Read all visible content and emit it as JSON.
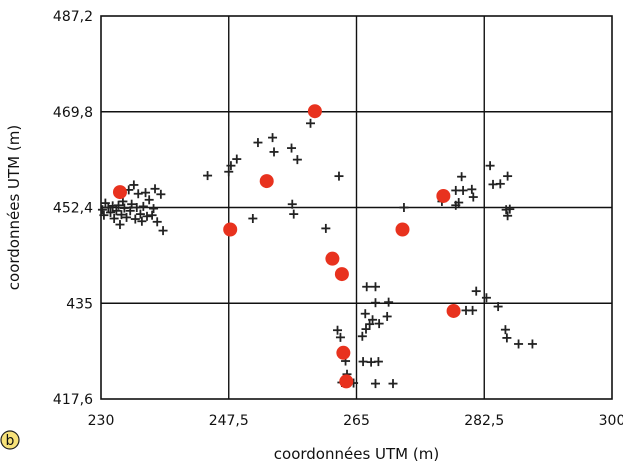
{
  "panel_label": "b",
  "chart_data": {
    "type": "scatter",
    "xlabel": "coordonnées UTM (m)",
    "ylabel": "coordonnées UTM (m)",
    "xlim": [
      230,
      300
    ],
    "ylim": [
      417.6,
      487.2
    ],
    "x_ticks": [
      "230",
      "247,5",
      "265",
      "282,5",
      "300"
    ],
    "y_ticks": [
      "417,6",
      "435",
      "452,4",
      "469,8",
      "487,2"
    ],
    "grid": true,
    "series": [
      {
        "marker": "cross",
        "color": "#222222",
        "points": [
          [
            230.2,
            452.0
          ],
          [
            230.4,
            451.0
          ],
          [
            230.6,
            453.2
          ],
          [
            231.0,
            452.4
          ],
          [
            231.3,
            451.5
          ],
          [
            231.6,
            452.7
          ],
          [
            231.8,
            450.4
          ],
          [
            232.1,
            451.8
          ],
          [
            232.4,
            452.8
          ],
          [
            232.6,
            449.3
          ],
          [
            232.8,
            451.1
          ],
          [
            233.0,
            453.5
          ],
          [
            233.2,
            452.3
          ],
          [
            233.5,
            450.6
          ],
          [
            233.8,
            455.6
          ],
          [
            234.0,
            451.8
          ],
          [
            234.2,
            453.0
          ],
          [
            234.5,
            456.5
          ],
          [
            234.7,
            450.3
          ],
          [
            234.9,
            452.4
          ],
          [
            235.1,
            454.9
          ],
          [
            235.4,
            451.2
          ],
          [
            235.6,
            449.9
          ],
          [
            235.8,
            452.6
          ],
          [
            236.1,
            455.1
          ],
          [
            236.3,
            450.8
          ],
          [
            236.6,
            453.8
          ],
          [
            237.0,
            451.0
          ],
          [
            237.2,
            452.2
          ],
          [
            237.4,
            455.8
          ],
          [
            237.7,
            449.8
          ],
          [
            238.2,
            454.8
          ],
          [
            238.5,
            448.2
          ],
          [
            244.6,
            458.2
          ],
          [
            247.5,
            458.9
          ],
          [
            247.8,
            460.0
          ],
          [
            248.6,
            461.2
          ],
          [
            251.5,
            464.2
          ],
          [
            252.6,
            456.8
          ],
          [
            250.8,
            450.4
          ],
          [
            253.5,
            465.1
          ],
          [
            253.7,
            462.5
          ],
          [
            256.1,
            463.2
          ],
          [
            256.4,
            451.2
          ],
          [
            256.9,
            461.1
          ],
          [
            256.2,
            453.0
          ],
          [
            258.7,
            467.7
          ],
          [
            259.1,
            469.8
          ],
          [
            262.6,
            458.1
          ],
          [
            260.8,
            448.6
          ],
          [
            262.4,
            430.1
          ],
          [
            262.8,
            428.8
          ],
          [
            263.2,
            426.3
          ],
          [
            263.5,
            424.5
          ],
          [
            263.7,
            422.1
          ],
          [
            263.0,
            420.6
          ],
          [
            265.8,
            429.0
          ],
          [
            266.3,
            430.3
          ],
          [
            266.8,
            431.2
          ],
          [
            267.2,
            432.0
          ],
          [
            266.2,
            433.1
          ],
          [
            268.1,
            431.3
          ],
          [
            269.2,
            432.6
          ],
          [
            267.6,
            435.1
          ],
          [
            269.4,
            435.2
          ],
          [
            266.4,
            438.0
          ],
          [
            267.6,
            438.0
          ],
          [
            265.9,
            424.4
          ],
          [
            267.0,
            424.3
          ],
          [
            268.0,
            424.4
          ],
          [
            264.6,
            420.5
          ],
          [
            267.6,
            420.4
          ],
          [
            270.0,
            420.4
          ],
          [
            271.5,
            452.4
          ],
          [
            276.7,
            453.5
          ],
          [
            278.6,
            455.5
          ],
          [
            278.6,
            452.8
          ],
          [
            279.4,
            458.0
          ],
          [
            279.0,
            453.3
          ],
          [
            279.6,
            455.5
          ],
          [
            280.8,
            455.7
          ],
          [
            281.0,
            454.3
          ],
          [
            283.3,
            460.0
          ],
          [
            283.7,
            456.6
          ],
          [
            284.7,
            456.7
          ],
          [
            285.7,
            458.1
          ],
          [
            285.5,
            452.0
          ],
          [
            286.0,
            452.1
          ],
          [
            285.7,
            450.9
          ],
          [
            280.0,
            433.7
          ],
          [
            280.9,
            433.7
          ],
          [
            281.4,
            437.2
          ],
          [
            282.8,
            436.0
          ],
          [
            284.4,
            434.4
          ],
          [
            285.4,
            430.2
          ],
          [
            285.6,
            428.7
          ],
          [
            287.2,
            427.6
          ],
          [
            289.1,
            427.6
          ]
        ]
      },
      {
        "marker": "dot",
        "color": "#e8321e",
        "points": [
          [
            232.6,
            455.2
          ],
          [
            247.7,
            448.4
          ],
          [
            252.7,
            457.2
          ],
          [
            259.3,
            469.9
          ],
          [
            261.7,
            443.1
          ],
          [
            263.0,
            440.3
          ],
          [
            263.2,
            426.0
          ],
          [
            263.6,
            420.8
          ],
          [
            271.3,
            448.4
          ],
          [
            276.9,
            454.5
          ],
          [
            278.3,
            433.6
          ]
        ]
      }
    ]
  }
}
